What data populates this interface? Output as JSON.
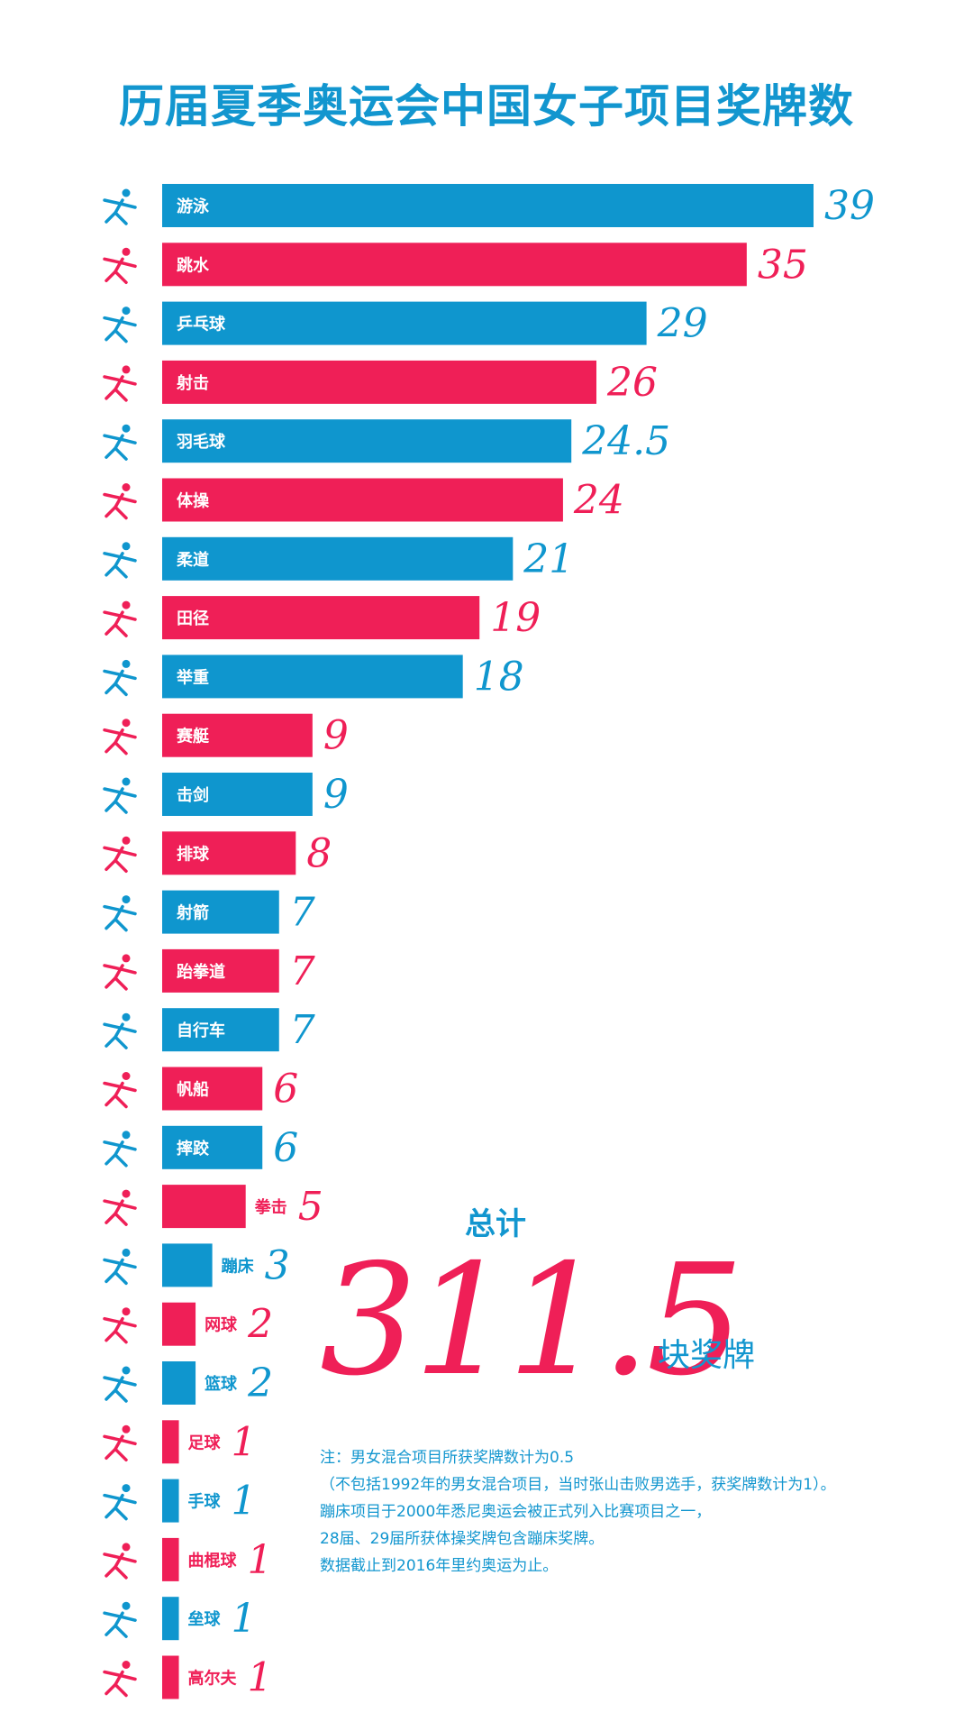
{
  "colors": {
    "blue": "#0f96ce",
    "red": "#ef1f57",
    "title": "#1296cf",
    "text": "#1296cf"
  },
  "summary": {
    "total_label": "总计",
    "total_value": "311.5",
    "total_unit": "块奖牌"
  },
  "notes": [
    "注：男女混合项目所获奖牌数计为0.5",
    "（不包括1992年的男女混合项目，当时张山击败男选手，获奖牌数计为1）。",
    "蹦床项目于2000年悉尼奥运会被正式列入比赛项目之一，",
    "28届、29届所获体操奖牌包含蹦床奖牌。",
    "数据截止到2016年里约奥运为止。"
  ],
  "chart_data": {
    "type": "bar",
    "orientation": "horizontal",
    "title": "历届夏季奥运会中国女子项目奖牌数",
    "categories": [
      "游泳",
      "跳水",
      "乒乓球",
      "射击",
      "羽毛球",
      "体操",
      "柔道",
      "田径",
      "举重",
      "赛艇",
      "击剑",
      "排球",
      "射箭",
      "跆拳道",
      "自行车",
      "帆船",
      "摔跤",
      "拳击",
      "蹦床",
      "网球",
      "篮球",
      "足球",
      "手球",
      "曲棍球",
      "垒球",
      "高尔夫"
    ],
    "values": [
      39,
      35,
      29,
      26,
      24.5,
      24,
      21,
      19,
      18,
      9,
      9,
      8,
      7,
      7,
      7,
      6,
      6,
      5,
      3,
      2,
      2,
      1,
      1,
      1,
      1,
      1
    ],
    "bar_colors": [
      "blue",
      "red",
      "blue",
      "red",
      "blue",
      "red",
      "blue",
      "red",
      "blue",
      "red",
      "blue",
      "red",
      "blue",
      "red",
      "blue",
      "red",
      "blue",
      "red",
      "blue",
      "red",
      "blue",
      "red",
      "blue",
      "red",
      "blue",
      "red"
    ],
    "icons": [
      "swimming-icon",
      "diving-icon",
      "table-tennis-icon",
      "shooting-icon",
      "badminton-icon",
      "gymnastics-icon",
      "judo-icon",
      "athletics-icon",
      "weightlifting-icon",
      "rowing-icon",
      "fencing-icon",
      "volleyball-icon",
      "archery-icon",
      "taekwondo-icon",
      "cycling-icon",
      "sailing-icon",
      "wrestling-icon",
      "boxing-icon",
      "trampoline-icon",
      "tennis-icon",
      "basketball-icon",
      "football-icon",
      "handball-icon",
      "hockey-icon",
      "softball-icon",
      "golf-icon"
    ],
    "xlabel": "",
    "ylabel": "",
    "xlim": [
      0,
      39
    ],
    "grid": false,
    "legend": false
  }
}
